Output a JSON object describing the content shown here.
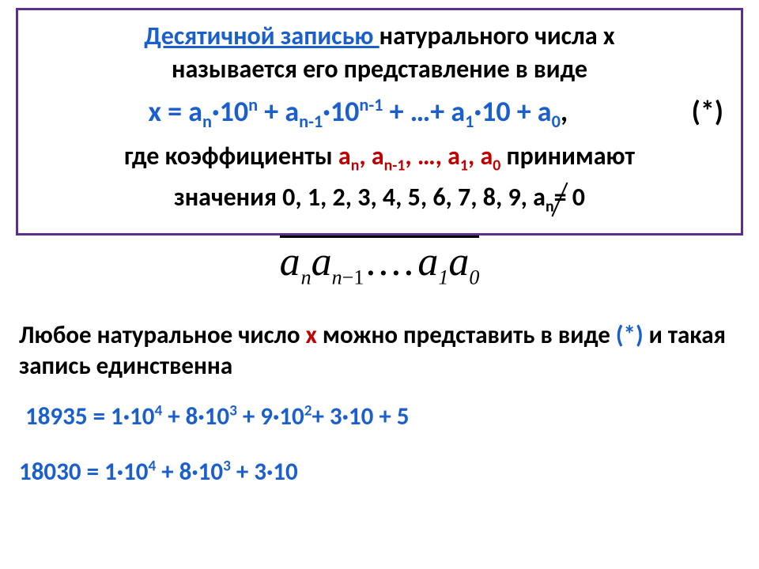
{
  "definition": {
    "term": "Десятичной записью ",
    "line1_rest": "натурального числа х",
    "line2": "называется его представление в виде",
    "formula": "х = a",
    "f_n": "n",
    "f_p1": "·10",
    "f_sup_n": "n",
    "f_p2": " + a",
    "f_nm1": "n-1",
    "f_p3": "·10",
    "f_sup_nm1": "n-1",
    "f_p4": " + …+ a",
    "f_1": "1",
    "f_p5": "·10 + a",
    "f_0": "0",
    "comma": ",",
    "star": "(*)",
    "line3_a": "где коэффициенты ",
    "line3_b": "a",
    "line3_n": "n",
    "line3_c": ", a",
    "line3_nm1": "n-1",
    "line3_d": ", …, a",
    "line3_1": "1",
    "line3_e": ", a",
    "line3_0": "0",
    "line3_f": " принимают",
    "line4_a": "значения 0, 1, 2, 3, 4, 5, 6, 7, 8, 9, a",
    "line4_n": "n",
    "line4_neq": " =",
    "line4_b": " 0"
  },
  "overline": {
    "a": "a",
    "n": "n",
    "nm1": "n",
    "nm1_minus": "−1",
    "dots": "....",
    "one": "1",
    "zero": "0"
  },
  "body": {
    "t1": "Любое натуральное число ",
    "x": "х",
    "t2": " можно представить в виде ",
    "star": "(*)",
    "t3": " и такая запись единственна"
  },
  "example1": {
    "num": "18935 = 1·10",
    "s4": "4",
    "p1": " + 8·10",
    "s3": "3",
    "p2": " + 9·10",
    "s2": "2",
    "p3": "+ 3·10 + 5"
  },
  "example2": {
    "num": "18030 = 1·10",
    "s4": "4",
    "p1": " + 8·10",
    "s3": "3",
    "p2": " + 3·10"
  },
  "colors": {
    "border": "#5b2e8f",
    "blue": "#1a5fcc",
    "red": "#c00000",
    "black": "#000000",
    "bg": "#ffffff"
  }
}
